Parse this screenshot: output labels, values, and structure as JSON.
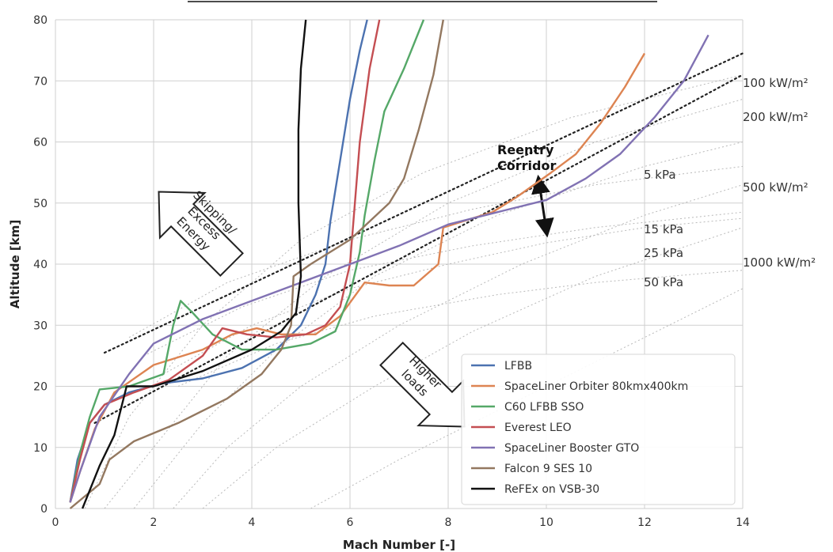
{
  "chart_data": {
    "type": "line",
    "xlabel": "Mach Number [-]",
    "ylabel": "Altitude [km]",
    "xlim": [
      0,
      14
    ],
    "ylim": [
      0,
      80
    ],
    "x_ticks": [
      "0",
      "2",
      "4",
      "6",
      "8",
      "10",
      "12",
      "14"
    ],
    "y_ticks": [
      "0",
      "10",
      "20",
      "30",
      "40",
      "50",
      "60",
      "70",
      "80"
    ],
    "grid": true,
    "legend_position": "lower-right",
    "series": [
      {
        "name": "LFBB",
        "color": "#4c72b0",
        "points": [
          [
            0.3,
            1
          ],
          [
            0.45,
            8
          ],
          [
            0.7,
            14
          ],
          [
            1.0,
            17
          ],
          [
            1.5,
            19
          ],
          [
            2.2,
            20.5
          ],
          [
            3.0,
            21.3
          ],
          [
            3.8,
            23
          ],
          [
            4.5,
            26
          ],
          [
            5.0,
            30
          ],
          [
            5.3,
            35
          ],
          [
            5.5,
            40
          ],
          [
            5.6,
            47
          ],
          [
            5.8,
            57
          ],
          [
            6.0,
            67
          ],
          [
            6.2,
            75
          ],
          [
            6.35,
            80
          ]
        ]
      },
      {
        "name": "SpaceLiner Orbiter 80kmx400km",
        "color": "#dd8452",
        "points": [
          [
            0.3,
            1
          ],
          [
            0.5,
            6
          ],
          [
            0.8,
            13
          ],
          [
            1.2,
            19
          ],
          [
            2.0,
            23.5
          ],
          [
            3.0,
            26
          ],
          [
            3.6,
            28.5
          ],
          [
            4.1,
            29.5
          ],
          [
            4.6,
            28.5
          ],
          [
            5.3,
            28.5
          ],
          [
            5.8,
            31.5
          ],
          [
            6.3,
            37
          ],
          [
            6.8,
            36.5
          ],
          [
            7.3,
            36.5
          ],
          [
            7.8,
            40
          ],
          [
            7.9,
            46
          ],
          [
            8.3,
            47
          ],
          [
            8.9,
            48.5
          ],
          [
            9.4,
            51
          ],
          [
            10.1,
            55
          ],
          [
            10.6,
            58
          ],
          [
            11.1,
            63
          ],
          [
            11.6,
            69
          ],
          [
            12.0,
            74.5
          ]
        ]
      },
      {
        "name": "C60 LFBB SSO",
        "color": "#55a868",
        "points": [
          [
            0.3,
            1
          ],
          [
            0.5,
            9
          ],
          [
            0.7,
            15
          ],
          [
            0.9,
            19.5
          ],
          [
            1.5,
            20
          ],
          [
            2.2,
            22
          ],
          [
            2.4,
            30
          ],
          [
            2.55,
            34
          ],
          [
            2.8,
            32
          ],
          [
            3.2,
            28.5
          ],
          [
            3.8,
            26
          ],
          [
            4.5,
            26
          ],
          [
            5.2,
            27
          ],
          [
            5.7,
            29
          ],
          [
            6.0,
            35
          ],
          [
            6.2,
            42
          ],
          [
            6.3,
            48
          ],
          [
            6.5,
            57
          ],
          [
            6.7,
            65
          ],
          [
            7.1,
            72
          ],
          [
            7.5,
            80
          ]
        ]
      },
      {
        "name": "Everest LEO",
        "color": "#c44e52",
        "points": [
          [
            0.3,
            1
          ],
          [
            0.5,
            8
          ],
          [
            0.7,
            14
          ],
          [
            1.0,
            17
          ],
          [
            1.6,
            19
          ],
          [
            2.3,
            21
          ],
          [
            3.0,
            25
          ],
          [
            3.4,
            29.5
          ],
          [
            3.9,
            28.5
          ],
          [
            4.5,
            28
          ],
          [
            5.1,
            28.5
          ],
          [
            5.5,
            30
          ],
          [
            5.8,
            33
          ],
          [
            6.0,
            40
          ],
          [
            6.1,
            50
          ],
          [
            6.2,
            60
          ],
          [
            6.4,
            72
          ],
          [
            6.6,
            80
          ]
        ]
      },
      {
        "name": "SpaceLiner Booster GTO",
        "color": "#8172b3",
        "points": [
          [
            0.3,
            1
          ],
          [
            0.5,
            6
          ],
          [
            0.9,
            15
          ],
          [
            1.5,
            22
          ],
          [
            2.0,
            27
          ],
          [
            3.0,
            31
          ],
          [
            4.0,
            34
          ],
          [
            5.0,
            37
          ],
          [
            6.0,
            40
          ],
          [
            7.0,
            43
          ],
          [
            8.0,
            46.5
          ],
          [
            9.0,
            48.5
          ],
          [
            10.0,
            50.5
          ],
          [
            10.8,
            54
          ],
          [
            11.5,
            58
          ],
          [
            12.2,
            64
          ],
          [
            12.8,
            70
          ],
          [
            13.3,
            77.5
          ]
        ]
      },
      {
        "name": "Falcon 9 SES 10",
        "color": "#937860",
        "points": [
          [
            0.3,
            0
          ],
          [
            0.6,
            2
          ],
          [
            0.9,
            4
          ],
          [
            1.1,
            8
          ],
          [
            1.6,
            11
          ],
          [
            2.5,
            14
          ],
          [
            3.5,
            18
          ],
          [
            4.2,
            22
          ],
          [
            4.6,
            26
          ],
          [
            4.8,
            30
          ],
          [
            4.85,
            38
          ],
          [
            5.2,
            40
          ],
          [
            6.0,
            44
          ],
          [
            6.8,
            50
          ],
          [
            7.1,
            54
          ],
          [
            7.4,
            62
          ],
          [
            7.7,
            71
          ],
          [
            7.9,
            80
          ]
        ]
      },
      {
        "name": "ReFEx on VSB-30",
        "color": "#111111",
        "points": [
          [
            0.55,
            0
          ],
          [
            0.7,
            3
          ],
          [
            0.9,
            7
          ],
          [
            1.2,
            12
          ],
          [
            1.45,
            20
          ],
          [
            2.0,
            20
          ],
          [
            3.0,
            22.5
          ],
          [
            4.0,
            26
          ],
          [
            4.6,
            29
          ],
          [
            4.9,
            32
          ],
          [
            5.0,
            38
          ],
          [
            4.95,
            50
          ],
          [
            4.95,
            62
          ],
          [
            5.0,
            72
          ],
          [
            5.1,
            80
          ]
        ]
      }
    ],
    "reentry_corridor": {
      "label": "Reentry\nCorridor",
      "upper_line": [
        [
          1.0,
          25.5
        ],
        [
          14.0,
          74.5
        ]
      ],
      "lower_line": [
        [
          0.8,
          14
        ],
        [
          14.0,
          71
        ]
      ],
      "arrow": [
        [
          9.85,
          53.5
        ],
        [
          10.0,
          45.5
        ]
      ]
    },
    "heat_flux_labels": [
      "100 kW/m²",
      "200 kW/m²",
      "500 kW/m²",
      "1000 kW/m²"
    ],
    "pressure_labels": [
      "5 kPa",
      "15 kPa",
      "25 kPa",
      "50 kPa"
    ],
    "annotations": [
      "Skipping/\nExcess\nEnergy",
      "Higher\nloads"
    ],
    "colors": {
      "grid": "#cfcfcf",
      "axis_text": "#333333",
      "guide": "#b9b9b9",
      "corridor": "#222222"
    }
  }
}
